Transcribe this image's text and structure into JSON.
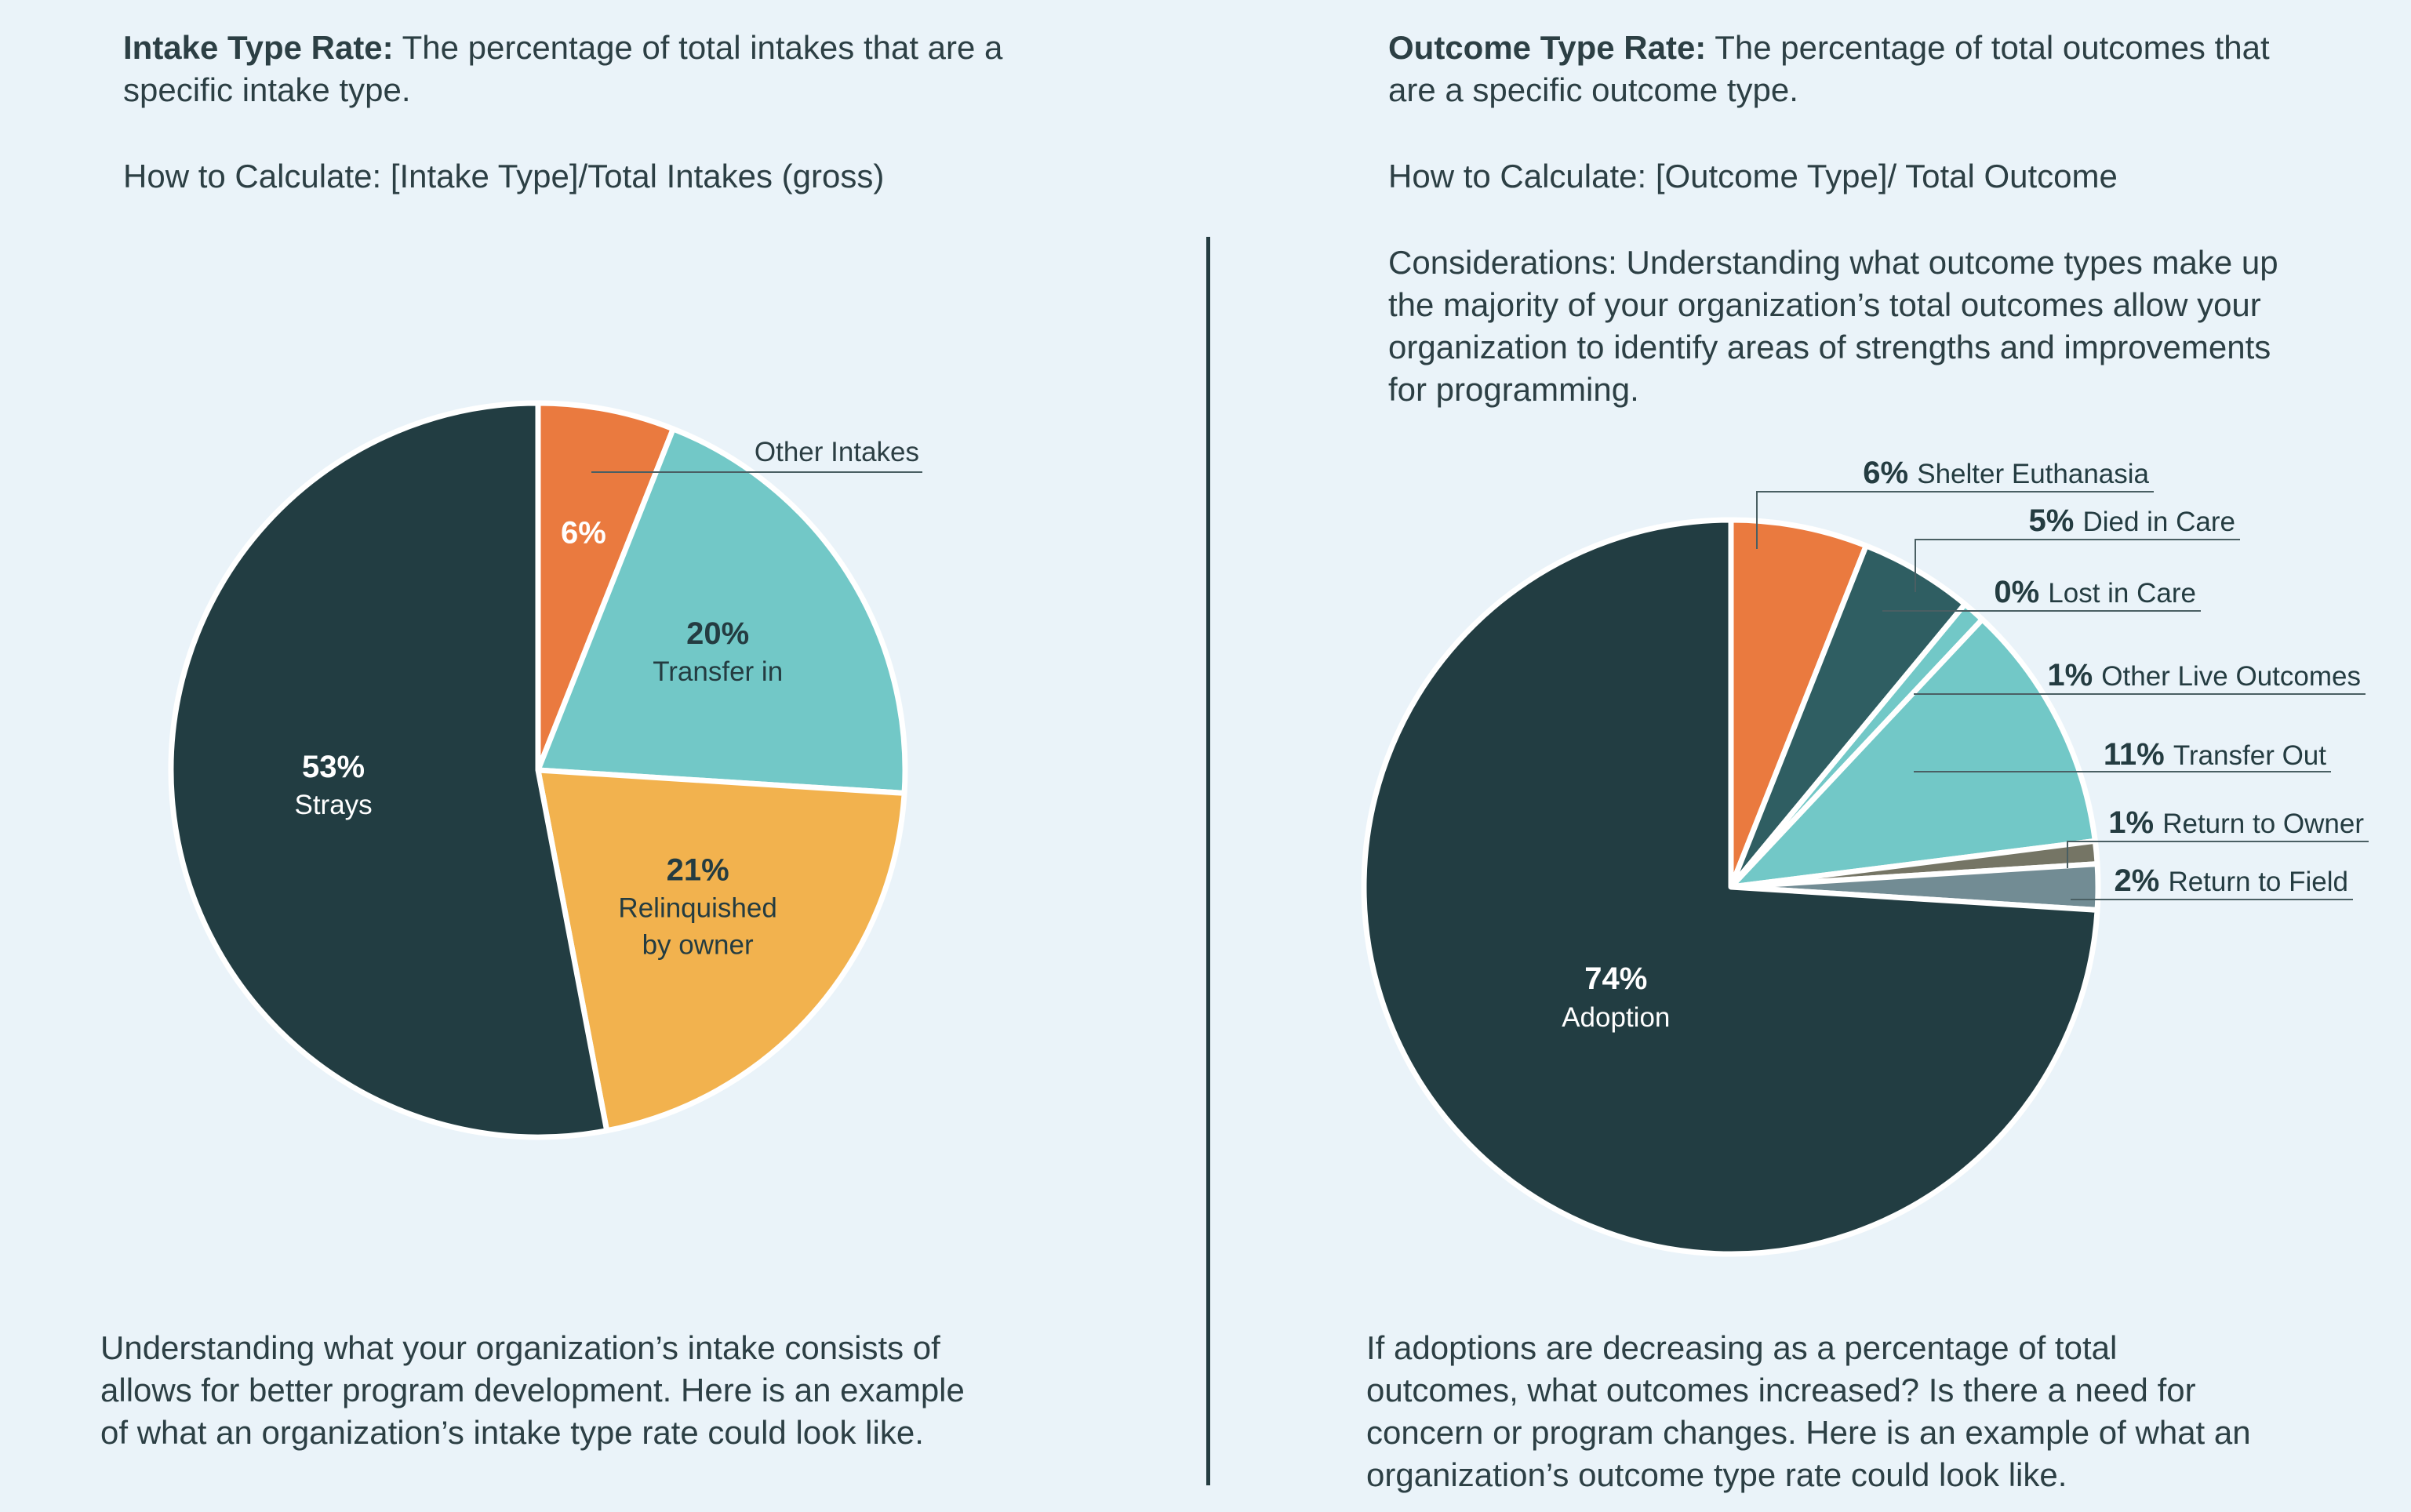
{
  "left": {
    "heading_bold": "Intake Type Rate:",
    "heading_line1": "The percentage of total intakes that are a",
    "heading_line2": "specific intake type.",
    "calc": "How to Calculate: [Intake Type]/Total Intakes (gross)",
    "footer": [
      "Understanding what your organization’s intake consists of",
      "allows for better program development. Here is an example",
      "of what an organization’s intake type rate could look like."
    ]
  },
  "right": {
    "heading_bold": "Outcome Type Rate:",
    "heading_line1": "The percentage of total outcomes that",
    "heading_line2": "are a specific outcome type.",
    "calc": "How to Calculate: [Outcome Type]/ Total Outcome",
    "considerations": [
      "Considerations: Understanding what outcome types make up",
      "the majority of your organization’s total outcomes allow your",
      "organization to identify areas of strengths and improvements",
      "for programming."
    ],
    "footer": [
      "If adoptions are decreasing as a percentage of total",
      "outcomes, what outcomes increased? Is there a need for",
      "concern or program changes. Here is an example of what an",
      "organization’s outcome type rate could look like."
    ]
  },
  "chart_data": [
    {
      "type": "pie",
      "title": "Intake Type Rate",
      "slices": [
        {
          "label": "Other Intakes",
          "value": 6,
          "display": "6%",
          "color": "#ea7a3f",
          "label_color": "#ffffff"
        },
        {
          "label": "Transfer in",
          "value": 20,
          "display": "20%",
          "color": "#72c8c7",
          "label_color": "#243c41"
        },
        {
          "label": "Relinquished by owner",
          "label_lines": [
            "Relinquished",
            "by owner"
          ],
          "value": 21,
          "display": "21%",
          "color": "#f2b24e",
          "label_color": "#243c41"
        },
        {
          "label": "Strays",
          "value": 53,
          "display": "53%",
          "color": "#223d42",
          "label_color": "#ffffff"
        }
      ]
    },
    {
      "type": "pie",
      "title": "Outcome Type Rate",
      "slices": [
        {
          "label": "Shelter Euthanasia",
          "value": 6,
          "display": "6%",
          "color": "#ea7a3f"
        },
        {
          "label": "Died in Care",
          "value": 5,
          "display": "5%",
          "color": "#2f5e62"
        },
        {
          "label": "Lost in Care",
          "value": 0,
          "display": "0%",
          "color": "#f2b24e"
        },
        {
          "label": "Other Live Outcomes",
          "value": 1,
          "display": "1%",
          "color": "#72c8c7"
        },
        {
          "label": "Transfer Out",
          "value": 11,
          "display": "11%",
          "color": "#72c8c7"
        },
        {
          "label": "Return to Owner",
          "value": 1,
          "display": "1%",
          "color": "#757565"
        },
        {
          "label": "Return to Field",
          "value": 2,
          "display": "2%",
          "color": "#728c94"
        },
        {
          "label": "Adoption",
          "value": 74,
          "display": "74%",
          "color": "#223d42"
        }
      ]
    }
  ]
}
